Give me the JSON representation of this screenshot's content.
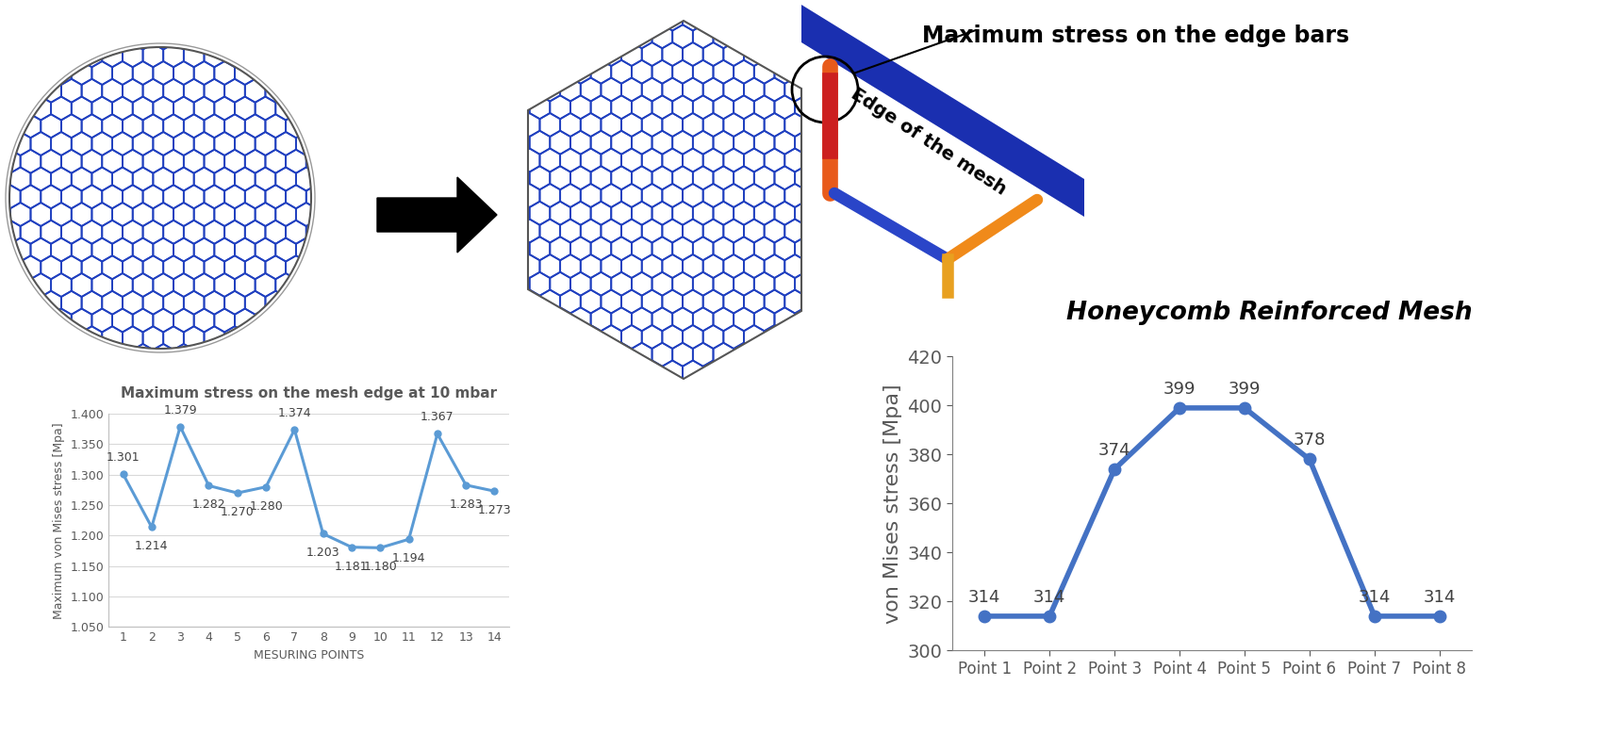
{
  "chart_data": [
    {
      "type": "line",
      "title": "Maximum stress on the mesh edge at 10 mbar",
      "x_label": "MESURING POINTS",
      "y_label": "Maximum von Mises stress [Mpa]",
      "categories": [
        "1",
        "2",
        "3",
        "4",
        "5",
        "6",
        "7",
        "8",
        "9",
        "10",
        "11",
        "12",
        "13",
        "14"
      ],
      "values": [
        1.301,
        1.214,
        1.379,
        1.282,
        1.27,
        1.28,
        1.374,
        1.203,
        1.181,
        1.18,
        1.194,
        1.367,
        1.283,
        1.273
      ],
      "value_labels": [
        "1.301",
        "1.214",
        "1.379",
        "1.282",
        "1.270",
        "1.280",
        "1.374",
        "1.203",
        "1.181",
        "1.180",
        "1.194",
        "1.367",
        "1.283",
        "1.273"
      ],
      "color": "#5b9bd5",
      "marker": "circle",
      "data_labels": true,
      "grid": true,
      "ylim": [
        1.05,
        1.4
      ],
      "yticks": [
        {
          "value": 1.05,
          "label": "1.050"
        },
        {
          "value": 1.1,
          "label": "1.100"
        },
        {
          "value": 1.15,
          "label": "1.150"
        },
        {
          "value": 1.2,
          "label": "1.200"
        },
        {
          "value": 1.25,
          "label": "1.250"
        },
        {
          "value": 1.3,
          "label": "1.300"
        },
        {
          "value": 1.35,
          "label": "1.350"
        },
        {
          "value": 1.4,
          "label": "1.400"
        }
      ]
    },
    {
      "type": "line",
      "title": "Honeycomb Reinforced Mesh",
      "y_label": "von Mises stress [Mpa]",
      "categories": [
        "Point 1",
        "Point 2",
        "Point 3",
        "Point 4",
        "Point 5",
        "Point 6",
        "Point 7",
        "Point 8"
      ],
      "values": [
        314,
        314,
        374,
        399,
        399,
        378,
        314,
        314
      ],
      "color": "#4472c4",
      "marker": "circle",
      "data_labels": true,
      "grid": false,
      "ylim": [
        300,
        420
      ],
      "yticks": [
        300,
        320,
        340,
        360,
        380,
        400,
        420
      ]
    }
  ],
  "diagram": {
    "callout": "Maximum stress on the edge bars",
    "edge_label": "Edge of the mesh"
  }
}
